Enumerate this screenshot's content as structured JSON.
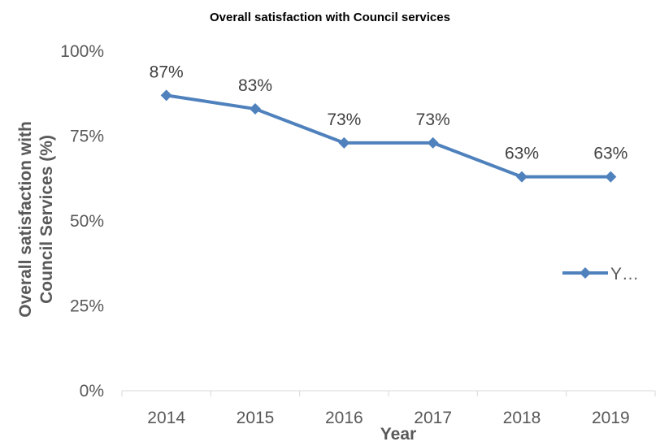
{
  "chart_data": {
    "type": "line",
    "title": "Overall satisfaction with Council services",
    "xlabel": "Year",
    "ylabel_line1": "Overall satisfaction with",
    "ylabel_line2": "Council Services (%)",
    "categories": [
      "2014",
      "2015",
      "2016",
      "2017",
      "2018",
      "2019"
    ],
    "series": [
      {
        "name": "Y…",
        "values": [
          87,
          83,
          73,
          73,
          63,
          63
        ],
        "labels": [
          "87%",
          "83%",
          "73%",
          "73%",
          "63%",
          "63%"
        ],
        "color": "#4F81BD"
      }
    ],
    "ylim": [
      0,
      100
    ],
    "yticks": [
      0,
      25,
      50,
      75,
      100
    ],
    "ytick_labels": [
      "0%",
      "25%",
      "50%",
      "75%",
      "100%"
    ],
    "grid": false,
    "legend_position": "right"
  }
}
